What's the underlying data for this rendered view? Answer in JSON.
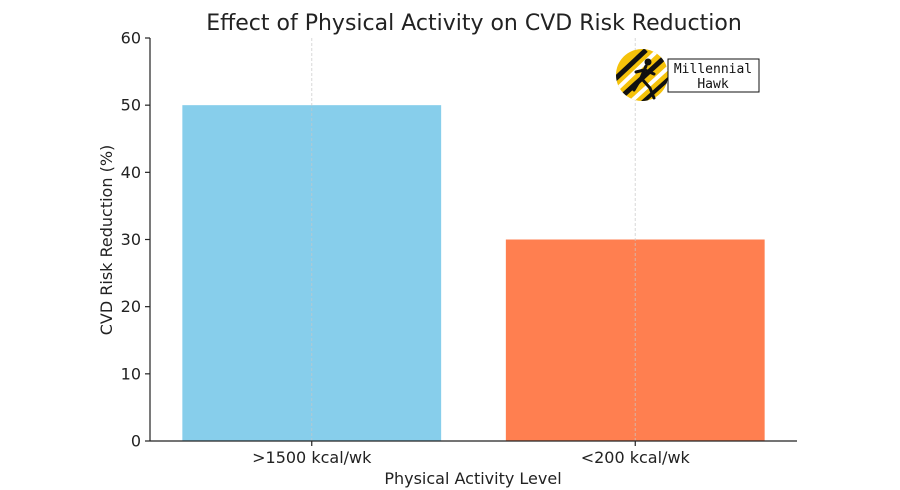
{
  "chart_data": {
    "type": "bar",
    "title": "Effect of Physical Activity on CVD Risk Reduction",
    "xlabel": "Physical Activity Level",
    "ylabel": "CVD Risk Reduction (%)",
    "categories": [
      ">1500 kcal/wk",
      "<200 kcal/wk"
    ],
    "values": [
      50,
      30
    ],
    "colors": [
      "#87ceeb",
      "#ff7f50"
    ],
    "ylim": [
      0,
      60
    ],
    "yticks": [
      "0",
      "10",
      "20",
      "30",
      "40",
      "50",
      "60"
    ],
    "grid": "x-dashed",
    "legend": "none"
  },
  "logo": {
    "line1": "Millennial",
    "line2": "Hawk",
    "circle_color": "#f5c20a"
  }
}
